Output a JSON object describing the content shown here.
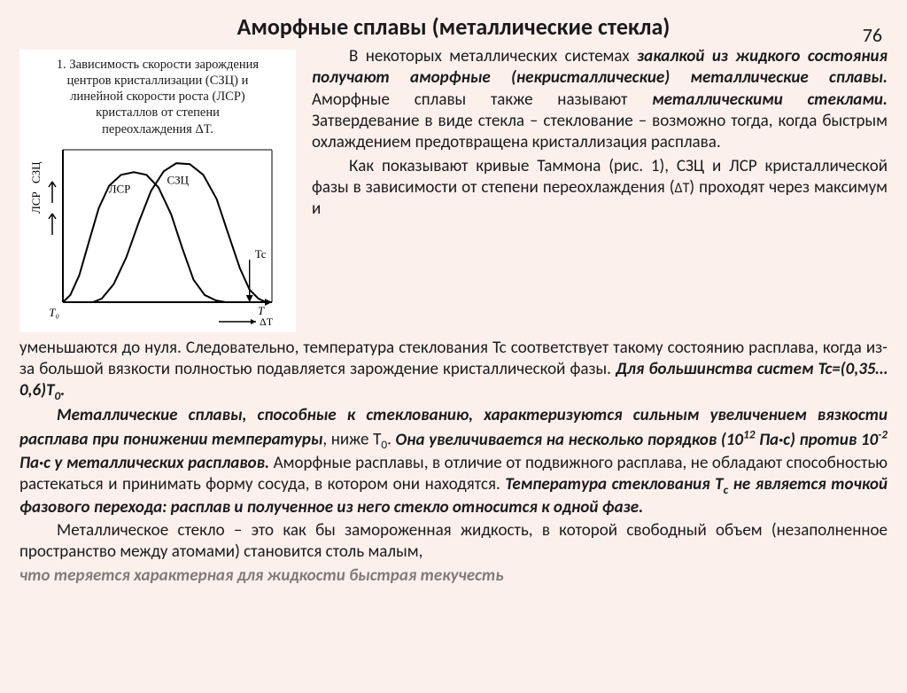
{
  "pageNumber": "76",
  "title": "Аморфные сплавы (металлические стекла)",
  "figure": {
    "captionLines": [
      "1. Зависимость скорости зарождения",
      "центров кристаллизации (СЗЦ) и",
      "линейной скорости роста (ЛСР)",
      "кристаллов от степени",
      "переохлаждения ΔТ."
    ],
    "chart": {
      "type": "line",
      "background_color": "#ffffff",
      "axis_color": "#000000",
      "stroke_width": 2,
      "xlim": [
        0,
        280
      ],
      "ylim": [
        0,
        170
      ],
      "axis_origin_label": "T₀",
      "x_axis_label": "T",
      "x_axis_sublabel": "ΔT",
      "y_axis_label_top": "СЗЦ",
      "y_axis_label_bottom": "ЛСР",
      "series": [
        {
          "name": "ЛСР",
          "label": "ЛСР",
          "label_x": 76,
          "label_y": 48,
          "color": "#000000",
          "points": [
            [
              0,
              170
            ],
            [
              10,
              162
            ],
            [
              22,
              140
            ],
            [
              34,
              105
            ],
            [
              48,
              65
            ],
            [
              62,
              40
            ],
            [
              78,
              28
            ],
            [
              95,
              25
            ],
            [
              112,
              28
            ],
            [
              128,
              42
            ],
            [
              145,
              72
            ],
            [
              160,
              110
            ],
            [
              175,
              145
            ],
            [
              190,
              162
            ],
            [
              205,
              168
            ],
            [
              218,
              170
            ]
          ]
        },
        {
          "name": "СЗЦ",
          "label": "СЗЦ",
          "label_x": 154,
          "label_y": 38,
          "color": "#000000",
          "points": [
            [
              40,
              170
            ],
            [
              52,
              166
            ],
            [
              68,
              150
            ],
            [
              85,
              120
            ],
            [
              102,
              80
            ],
            [
              118,
              46
            ],
            [
              135,
              24
            ],
            [
              152,
              15
            ],
            [
              170,
              16
            ],
            [
              188,
              28
            ],
            [
              206,
              55
            ],
            [
              222,
              95
            ],
            [
              237,
              132
            ],
            [
              250,
              156
            ],
            [
              262,
              166
            ],
            [
              272,
              170
            ]
          ]
        }
      ],
      "marker": {
        "label": "Tc",
        "x": 250
      }
    }
  },
  "body": {
    "p1_pre": "В некоторых металлических системах ",
    "p1_bi1": "закалкой из жидкого состояния получают аморфные (некристаллические) металлические сплавы.",
    "p1_mid": " Аморфные сплавы также называют ",
    "p1_bi2": "металлическими стеклами.",
    "p1_post": " Затвердевание в виде стекла – стеклование – возможно тогда, когда быстрым охлаждением предотвращена кристаллизация расплава.",
    "p2_a": "Как показывают кривые Таммона (рис. 1), СЗЦ и ЛСР кристаллической фазы в зависимости от степени переохлаждения (",
    "p2_dt": "ΔТ",
    "p2_b": ") проходят через максимум и ",
    "p2_c": "уменьшаются до нуля. Следовательно, температура стеклования Тс соответствует такому состоянию расплава, когда из-за большой вязкости полностью подавляется зарождение кристаллической фазы. ",
    "p2_bi": "Для большинства систем Тс=(0,35…0,6)Т",
    "p2_sub": "0",
    "p2_dot": ".",
    "p3_bi1": "Металлические сплавы, способные к стеклованию, характеризуются сильным увеличением вязкости расплава при понижении температуры",
    "p3_mid1": ", ниже Т",
    "p3_sub0": "0",
    "p3_mid2": ". ",
    "p3_bi2a": "Она увеличивается на несколько порядков (10",
    "p3_sup12": "12",
    "p3_bi2b": " Па·с) против 10",
    "p3_supm2": "-2",
    "p3_bi2c": " Па·с у металлических расплавов.",
    "p3_tail": " Аморфные расплавы, в отличие от подвижного расплава, не обладают способностью растекаться и принимать форму сосуда, в котором они находятся. ",
    "p3_bi3a": "Температура стеклования Т",
    "p3_subc": "с",
    "p3_bi3b": " не является точкой фазового перехода: расплав и полученное из него стекло относится к одной фазе.",
    "p4_a": "Металлическое стекло – это как бы замороженная жидкость, в которой свободный объем (незаполненное пространство между атомами) становится столь малым, ",
    "p4_cut": "что теряется характерная для жидкости быстрая текучесть"
  }
}
